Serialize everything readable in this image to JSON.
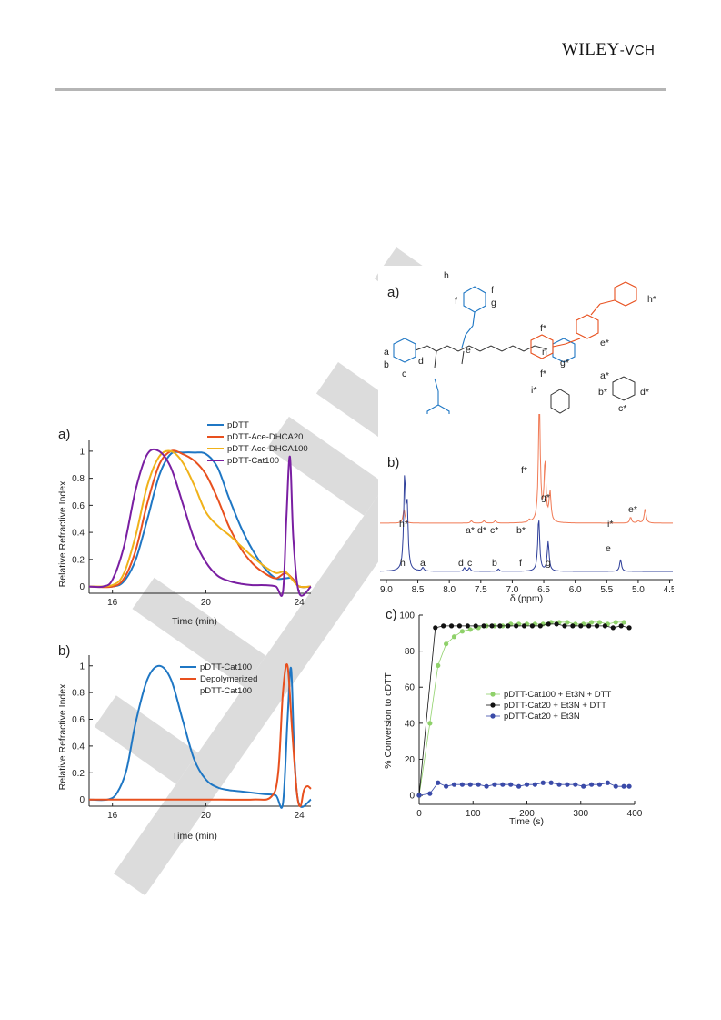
{
  "header": {
    "publisher_main": "WILEY",
    "publisher_tag": "-VCH"
  },
  "colors": {
    "blue": "#1f77c4",
    "red": "#e8501e",
    "yellow": "#f0b21a",
    "purple": "#7a1fa2",
    "nmr_top": "#f07a55",
    "nmr_bottom": "#2e3f9a",
    "green": "#8fd16a",
    "black": "#111111",
    "navy": "#3a4aa8",
    "watermark": "#d6d6d6"
  },
  "scheme": {
    "panel_label": "a)",
    "polymer_labels": [
      "a",
      "b",
      "c",
      "d",
      "e",
      "f",
      "f",
      "g",
      "h"
    ],
    "repeat_index": "n",
    "product_labels": [
      "e*",
      "f*",
      "f*",
      "g*",
      "h*",
      "i*",
      "a*",
      "b*",
      "c*",
      "d*"
    ]
  },
  "chart_data": [
    {
      "id": "sec_a",
      "type": "line",
      "panel_label": "a)",
      "xlabel": "Time (min)",
      "ylabel": "Relative Refractive Index",
      "xlim": [
        15,
        24.5
      ],
      "ylim": [
        -0.05,
        1.08
      ],
      "x_ticks": [
        16,
        20,
        24
      ],
      "y_ticks": [
        0,
        0.2,
        0.4,
        0.6,
        0.8,
        1
      ],
      "legend_position": "top-right",
      "series": [
        {
          "name": "pDTT",
          "color": "#1f77c4",
          "x": [
            15,
            16,
            16.5,
            17,
            17.5,
            18,
            18.5,
            19,
            19.5,
            20,
            20.5,
            21,
            21.5,
            22,
            22.5,
            23,
            23.4,
            23.7,
            24,
            24.5
          ],
          "y": [
            0,
            0,
            0.04,
            0.2,
            0.5,
            0.82,
            0.98,
            0.99,
            0.99,
            0.98,
            0.88,
            0.65,
            0.44,
            0.27,
            0.14,
            0.06,
            0.06,
            0.06,
            0,
            0
          ]
        },
        {
          "name": "pDTT-Ace-DHCA20",
          "color": "#e8501e",
          "x": [
            15,
            16,
            16.5,
            17,
            17.5,
            18,
            18.5,
            19,
            19.5,
            20,
            20.5,
            21,
            21.5,
            22,
            22.5,
            23,
            23.4,
            23.7,
            24,
            24.5
          ],
          "y": [
            0,
            0,
            0.06,
            0.27,
            0.62,
            0.9,
            1.0,
            0.98,
            0.93,
            0.83,
            0.65,
            0.44,
            0.28,
            0.17,
            0.1,
            0.06,
            0.1,
            0.06,
            0,
            0
          ]
        },
        {
          "name": "pDTT-Ace-DHCA100",
          "color": "#f0b21a",
          "x": [
            15,
            16,
            16.5,
            17,
            17.5,
            18,
            18.5,
            19,
            19.5,
            20,
            20.5,
            21,
            21.5,
            22,
            22.5,
            23,
            23.4,
            23.7,
            24,
            24.5
          ],
          "y": [
            0,
            0.01,
            0.1,
            0.38,
            0.75,
            0.96,
            1.0,
            0.92,
            0.75,
            0.55,
            0.45,
            0.38,
            0.3,
            0.22,
            0.15,
            0.1,
            0.11,
            0.05,
            0,
            0
          ]
        },
        {
          "name": "pDTT-Cat100",
          "color": "#7a1fa2",
          "x": [
            15,
            15.6,
            16,
            16.5,
            17,
            17.5,
            18,
            18.5,
            19,
            19.5,
            20,
            20.5,
            21,
            21.5,
            22,
            22.5,
            23,
            23.3,
            23.45,
            23.6,
            23.75,
            24,
            24.5
          ],
          "y": [
            0,
            0,
            0.05,
            0.3,
            0.72,
            0.98,
            1.0,
            0.88,
            0.62,
            0.35,
            0.18,
            0.08,
            0.04,
            0.02,
            0.01,
            0.01,
            0.0,
            -0.04,
            0.5,
            0.96,
            0.35,
            -0.05,
            0
          ]
        }
      ]
    },
    {
      "id": "sec_b",
      "type": "line",
      "panel_label": "b)",
      "xlabel": "Time (min)",
      "ylabel": "Relative Refractive Index",
      "xlim": [
        15,
        24.5
      ],
      "ylim": [
        -0.05,
        1.08
      ],
      "x_ticks": [
        16,
        20,
        24
      ],
      "y_ticks": [
        0,
        0.2,
        0.4,
        0.6,
        0.8,
        1
      ],
      "legend_position": "top-center",
      "series": [
        {
          "name": "pDTT-Cat100",
          "color": "#1f77c4",
          "x": [
            15,
            15.8,
            16.2,
            16.6,
            17,
            17.5,
            18,
            18.5,
            19,
            19.5,
            20,
            20.5,
            21,
            21.5,
            22,
            22.5,
            23,
            23.3,
            23.5,
            23.65,
            23.8,
            24,
            24.5
          ],
          "y": [
            0,
            0,
            0.05,
            0.22,
            0.58,
            0.9,
            1.0,
            0.9,
            0.6,
            0.3,
            0.15,
            0.09,
            0.07,
            0.06,
            0.05,
            0.04,
            0.03,
            -0.03,
            0.6,
            0.98,
            0.3,
            -0.04,
            0
          ]
        },
        {
          "name": "Depolymerized pDTT-Cat100",
          "color": "#e8501e",
          "x": [
            15,
            18,
            20,
            22,
            22.8,
            23.1,
            23.3,
            23.5,
            23.7,
            23.9,
            24.05,
            24.2,
            24.35,
            24.5
          ],
          "y": [
            0,
            0.0,
            0.0,
            0.0,
            0.02,
            0.2,
            0.8,
            1.0,
            0.5,
            0.05,
            -0.05,
            0.07,
            0.1,
            0.08
          ]
        }
      ]
    },
    {
      "id": "nmr_b",
      "type": "line",
      "panel_label": "b)",
      "xlabel": "δ (ppm)",
      "xlim": [
        9.1,
        4.45
      ],
      "x_ticks": [
        9.0,
        8.5,
        8.0,
        7.5,
        7.0,
        6.5,
        6.0,
        5.5,
        5.0,
        4.5
      ],
      "series": [
        {
          "name": "",
          "color": "#f07a55",
          "offset": 0.34,
          "peaks": [
            [
              8.72,
              0.12
            ],
            [
              7.65,
              0.02
            ],
            [
              7.45,
              0.02
            ],
            [
              7.27,
              0.02
            ],
            [
              6.73,
              0.02
            ],
            [
              6.57,
              1.0
            ],
            [
              6.48,
              0.5
            ],
            [
              6.4,
              0.25
            ],
            [
              5.12,
              0.05
            ],
            [
              5.0,
              0.02
            ],
            [
              4.89,
              0.12
            ]
          ]
        },
        {
          "name": "",
          "color": "#2e3f9a",
          "offset": 0.0,
          "peaks": [
            [
              8.71,
              0.75
            ],
            [
              8.67,
              0.5
            ],
            [
              8.42,
              0.03
            ],
            [
              7.76,
              0.03
            ],
            [
              7.68,
              0.03
            ],
            [
              7.22,
              0.02
            ],
            [
              6.58,
              0.45
            ],
            [
              6.43,
              0.25
            ],
            [
              5.28,
              0.1
            ]
          ]
        }
      ],
      "peak_labels_top": [
        "h*",
        "a*",
        "d*",
        "c*",
        "b*",
        "f*",
        "g*",
        "i*",
        "e*"
      ],
      "peak_labels_bottom": [
        "h",
        "a",
        "d",
        "c",
        "b",
        "f",
        "g",
        "e"
      ]
    },
    {
      "id": "conversion_c",
      "type": "scatter",
      "panel_label": "c)",
      "xlabel": "Time (s)",
      "ylabel": "% Conversion to cDTT",
      "xlim": [
        0,
        400
      ],
      "ylim": [
        -5,
        100
      ],
      "x_ticks": [
        0,
        100,
        200,
        300,
        400
      ],
      "y_ticks": [
        0,
        20,
        40,
        60,
        80,
        100
      ],
      "legend_position": "center-right",
      "series": [
        {
          "name": "pDTT-Cat100 + Et3N + DTT",
          "color": "#8fd16a",
          "x": [
            0,
            20,
            35,
            50,
            65,
            80,
            95,
            110,
            125,
            140,
            155,
            170,
            185,
            200,
            215,
            230,
            245,
            260,
            275,
            290,
            305,
            320,
            335,
            350,
            365,
            380
          ],
          "y": [
            0,
            40,
            72,
            84,
            88,
            91,
            92,
            93,
            94,
            94,
            94,
            95,
            95,
            95,
            95,
            95,
            96,
            96,
            96,
            95,
            95,
            96,
            96,
            95,
            96,
            96
          ]
        },
        {
          "name": "pDTT-Cat20 + Et3N + DTT",
          "color": "#111111",
          "x": [
            0,
            30,
            45,
            60,
            75,
            90,
            105,
            120,
            135,
            150,
            165,
            180,
            195,
            210,
            225,
            240,
            255,
            270,
            285,
            300,
            315,
            330,
            345,
            360,
            375,
            390
          ],
          "y": [
            0,
            93,
            94,
            94,
            94,
            94,
            94,
            94,
            94,
            94,
            94,
            94,
            94,
            94,
            94,
            95,
            95,
            94,
            94,
            94,
            94,
            94,
            94,
            93,
            94,
            93
          ]
        },
        {
          "name": "pDTT-Cat20 + Et3N",
          "color": "#3a4aa8",
          "x": [
            0,
            20,
            35,
            50,
            65,
            80,
            95,
            110,
            125,
            140,
            155,
            170,
            185,
            200,
            215,
            230,
            245,
            260,
            275,
            290,
            305,
            320,
            335,
            350,
            365,
            380,
            390
          ],
          "y": [
            0,
            1,
            7,
            5,
            6,
            6,
            6,
            6,
            5,
            6,
            6,
            6,
            5,
            6,
            6,
            7,
            7,
            6,
            6,
            6,
            5,
            6,
            6,
            7,
            5,
            5,
            5
          ]
        }
      ]
    }
  ],
  "legends": {
    "sec_a": [
      {
        "text": "pDTT",
        "color": "#1f77c4"
      },
      {
        "text": "pDTT-Ace-DHCA20",
        "color": "#e8501e"
      },
      {
        "text": "pDTT-Ace-DHCA100",
        "color": "#f0b21a"
      },
      {
        "text": "pDTT-Cat100",
        "color": "#7a1fa2"
      }
    ],
    "sec_b": [
      {
        "text": "pDTT-Cat100",
        "color": "#1f77c4"
      },
      {
        "text": "Depolymerized",
        "color": "#e8501e"
      },
      {
        "text": "pDTT-Cat100",
        "color": "#e8501e"
      }
    ],
    "conversion_c": [
      {
        "text": "pDTT-Cat100 + Et3N + DTT",
        "color": "#8fd16a"
      },
      {
        "text": "pDTT-Cat20 + Et3N + DTT",
        "color": "#111111"
      },
      {
        "text": "pDTT-Cat20 + Et3N",
        "color": "#3a4aa8"
      }
    ]
  }
}
